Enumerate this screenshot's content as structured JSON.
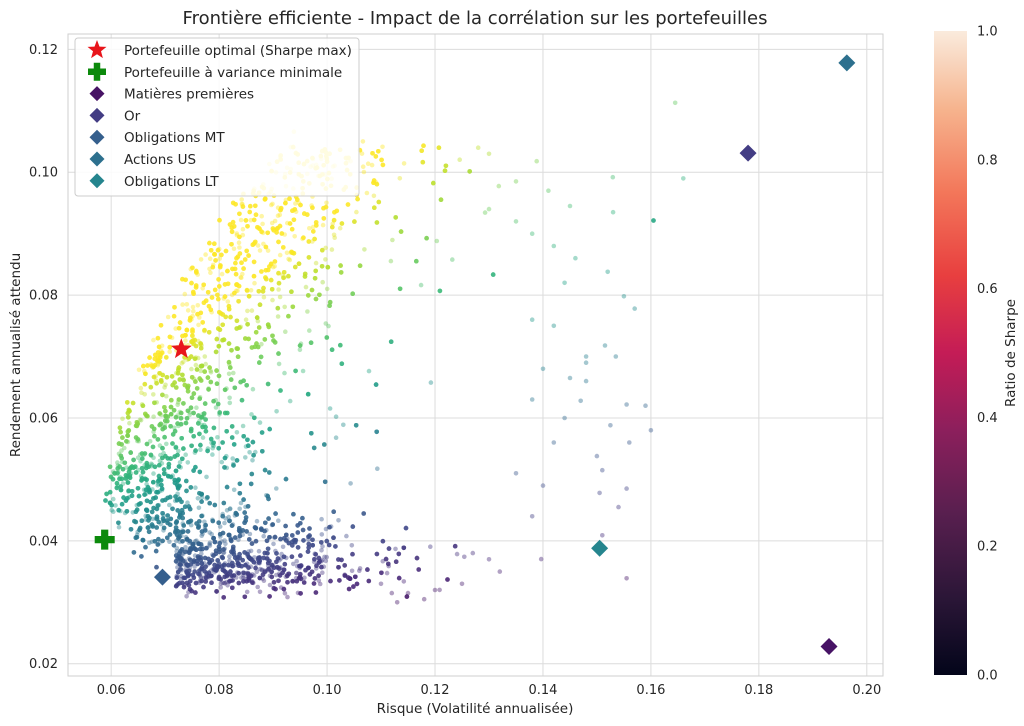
{
  "chart_data": [
    {
      "type": "scatter",
      "title": "Frontière efficiente - Impact de la corrélation sur les portefeuilles",
      "xlabel": "Risque (Volatilité annualisée)",
      "ylabel": "Rendement annualisé attendu",
      "xlim": [
        0.052,
        0.203
      ],
      "ylim": [
        0.018,
        0.1225
      ],
      "xticks": [
        "0.06",
        "0.08",
        "0.10",
        "0.12",
        "0.14",
        "0.16",
        "0.18",
        "0.20"
      ],
      "xtick_values": [
        0.06,
        0.08,
        0.1,
        0.12,
        0.14,
        0.16,
        0.18,
        0.2
      ],
      "yticks": [
        "0.02",
        "0.04",
        "0.06",
        "0.08",
        "0.10",
        "0.12"
      ],
      "ytick_values": [
        0.02,
        0.04,
        0.06,
        0.08,
        0.1,
        0.12
      ],
      "grid": true,
      "legend_position": "top-left",
      "colormap": "viridis",
      "series": [
        {
          "name": "Portefeuille optimal (Sharpe max)",
          "marker": "star",
          "color": "#e8151b",
          "points": [
            [
              0.073,
              0.0712
            ]
          ]
        },
        {
          "name": "Portefeuille à variance minimale",
          "marker": "plus",
          "color": "#0c8a0c",
          "points": [
            [
              0.0588,
              0.0402
            ]
          ]
        },
        {
          "name": "Matières premières",
          "marker": "diamond",
          "color": "#471365",
          "points": [
            [
              0.193,
              0.0228
            ]
          ]
        },
        {
          "name": "Or",
          "marker": "diamond",
          "color": "#433d84",
          "points": [
            [
              0.178,
              0.1031
            ]
          ]
        },
        {
          "name": "Obligations MT",
          "marker": "diamond",
          "color": "#355f8d",
          "points": [
            [
              0.0695,
              0.0341
            ]
          ]
        },
        {
          "name": "Actions US",
          "marker": "diamond",
          "color": "#2d708e",
          "points": [
            [
              0.1963,
              0.1178
            ]
          ]
        },
        {
          "name": "Obligations LT",
          "marker": "diamond",
          "color": "#25858e",
          "points": [
            [
              0.1505,
              0.0388
            ]
          ]
        }
      ],
      "cloud_points": [
        [
          0.1645,
          0.1113
        ],
        [
          0.166,
          0.099
        ],
        [
          0.128,
          0.104
        ],
        [
          0.13,
          0.103
        ],
        [
          0.135,
          0.0985
        ],
        [
          0.141,
          0.097
        ],
        [
          0.145,
          0.0945
        ],
        [
          0.153,
          0.0935
        ],
        [
          0.152,
          0.0838
        ],
        [
          0.155,
          0.0798
        ],
        [
          0.157,
          0.0778
        ],
        [
          0.1515,
          0.0718
        ],
        [
          0.1535,
          0.07
        ],
        [
          0.148,
          0.069
        ],
        [
          0.145,
          0.0665
        ],
        [
          0.147,
          0.0628
        ],
        [
          0.1555,
          0.0622
        ],
        [
          0.1525,
          0.0588
        ],
        [
          0.15,
          0.0538
        ],
        [
          0.151,
          0.0515
        ],
        [
          0.1555,
          0.0485
        ],
        [
          0.154,
          0.0455
        ],
        [
          0.1505,
          0.0478
        ],
        [
          0.1555,
          0.0339
        ],
        [
          0.151,
          0.0409
        ],
        [
          0.14,
          0.049
        ],
        [
          0.138,
          0.044
        ],
        [
          0.135,
          0.051
        ],
        [
          0.132,
          0.035
        ],
        [
          0.13,
          0.037
        ],
        [
          0.127,
          0.038
        ],
        [
          0.125,
          0.033
        ],
        [
          0.12,
          0.032
        ],
        [
          0.118,
          0.0305
        ],
        [
          0.115,
          0.0315
        ],
        [
          0.113,
          0.03
        ],
        [
          0.112,
          0.0315
        ],
        [
          0.11,
          0.033
        ],
        [
          0.142,
          0.056
        ],
        [
          0.144,
          0.06
        ],
        [
          0.138,
          0.063
        ],
        [
          0.14,
          0.068
        ],
        [
          0.142,
          0.075
        ],
        [
          0.148,
          0.07
        ],
        [
          0.138,
          0.076
        ],
        [
          0.148,
          0.066
        ],
        [
          0.16,
          0.058
        ],
        [
          0.156,
          0.056
        ],
        [
          0.159,
          0.062
        ],
        [
          0.138,
          0.09
        ],
        [
          0.135,
          0.092
        ],
        [
          0.142,
          0.088
        ],
        [
          0.146,
          0.086
        ],
        [
          0.144,
          0.082
        ],
        [
          0.13,
          0.094
        ]
      ]
    },
    {
      "type": "colorbar",
      "label": "Ratio de Sharpe",
      "range": [
        0.0,
        1.0
      ],
      "ticks": [
        "0.0",
        "0.2",
        "0.4",
        "0.6",
        "0.8",
        "1.0"
      ],
      "tick_values": [
        0.0,
        0.2,
        0.4,
        0.6,
        0.8,
        1.0
      ],
      "colormap": "rocket"
    }
  ]
}
